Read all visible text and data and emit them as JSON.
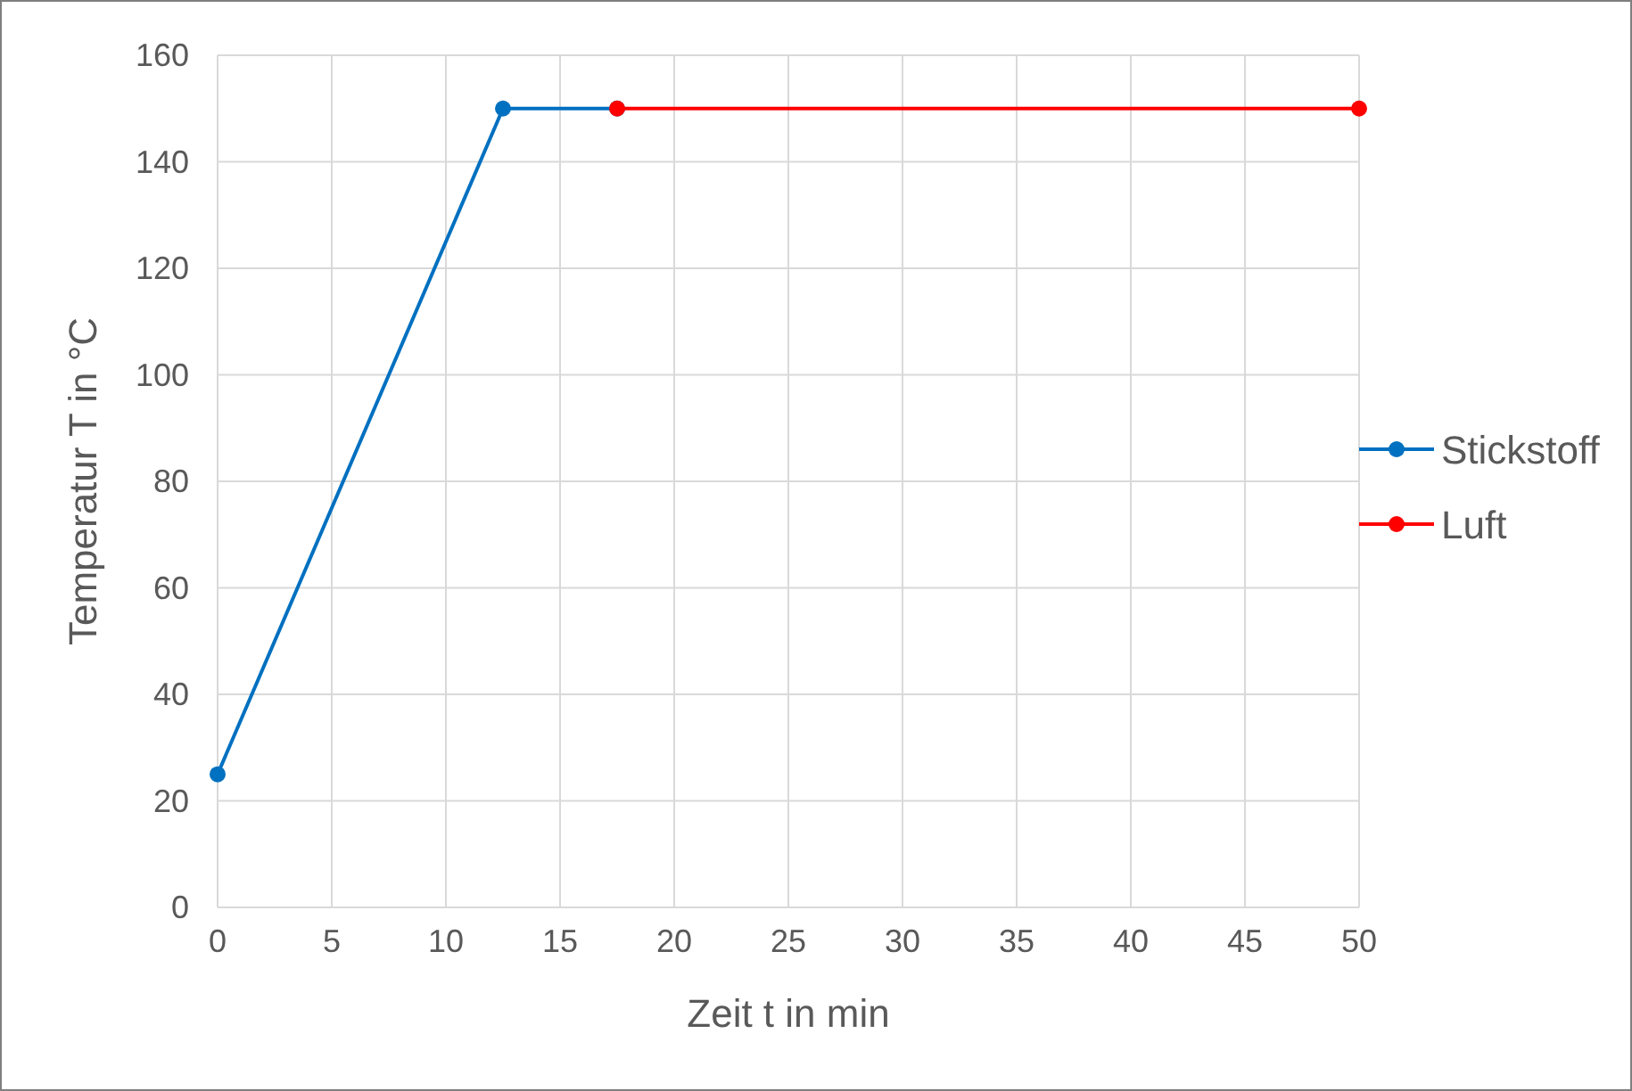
{
  "chart_data": {
    "type": "line",
    "xlabel": "Zeit t in min",
    "ylabel": "Temperatur T in °C",
    "xlim": [
      0,
      50
    ],
    "xticks": [
      0,
      5,
      10,
      15,
      20,
      25,
      30,
      35,
      40,
      45,
      50
    ],
    "ylim": [
      0,
      160
    ],
    "yticks": [
      0,
      20,
      40,
      60,
      80,
      100,
      120,
      140,
      160
    ],
    "grid": true,
    "legend": "right",
    "marker": "circle",
    "line_style": "solid",
    "series": [
      {
        "name": "Stickstoff",
        "color": "#0070c0",
        "x": [
          0,
          12.5,
          17.5
        ],
        "values": [
          25,
          150,
          150
        ]
      },
      {
        "name": "Luft",
        "color": "#ff0000",
        "x": [
          17.5,
          50
        ],
        "values": [
          150,
          150
        ]
      }
    ]
  }
}
